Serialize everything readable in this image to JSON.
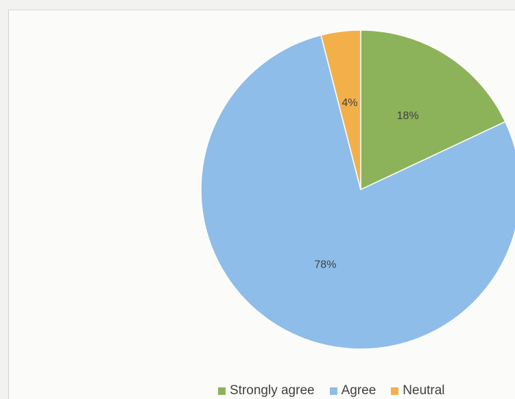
{
  "chart_data": {
    "type": "pie",
    "categories": [
      "Strongly agree",
      "Agree",
      "Neutral"
    ],
    "values": [
      18,
      78,
      4
    ],
    "data_labels": [
      "18%",
      "78%",
      "4%"
    ],
    "colors": [
      "#8db35a",
      "#8fbde9",
      "#f3b04a"
    ],
    "start_angle": "12 o'clock, clockwise",
    "legend_position": "bottom"
  }
}
